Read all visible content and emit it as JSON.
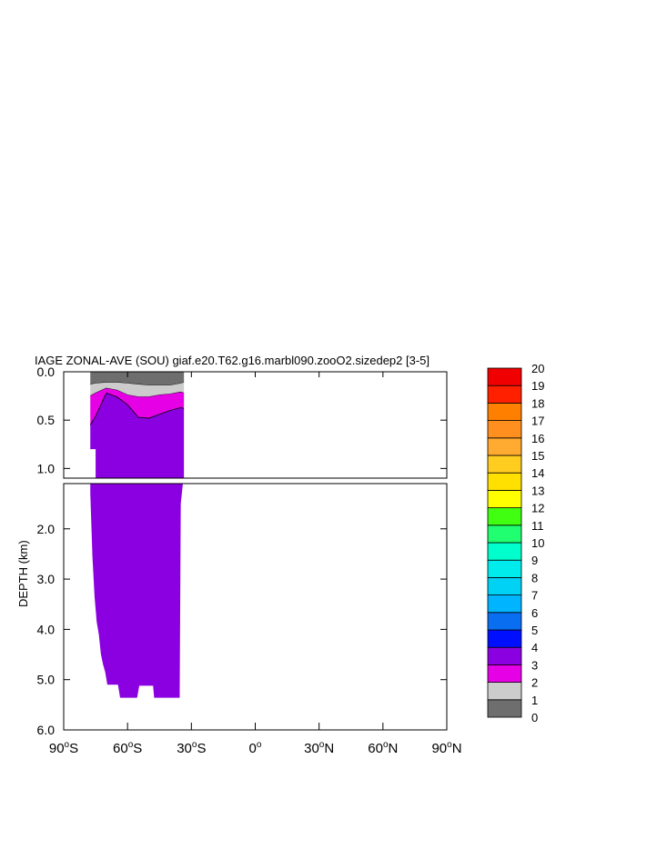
{
  "chart_data": {
    "type": "contour",
    "title": "IAGE ZONAL-AVE (SOU) giaf.e20.T62.g16.marbl090.zooO2.sizedep2 [3-5]",
    "ylabel": "DEPTH (km)",
    "xlim": [
      -90,
      90
    ],
    "upper_panel": {
      "ylim": [
        0.0,
        1.1
      ],
      "yticks": [
        0.0,
        0.5,
        1.0
      ],
      "ytick_labels": [
        "0.0",
        "0.5",
        "1.0"
      ]
    },
    "lower_panel": {
      "ylim": [
        1.1,
        6.0
      ],
      "yticks": [
        2.0,
        3.0,
        4.0,
        5.0,
        6.0
      ],
      "ytick_labels": [
        "2.0",
        "3.0",
        "4.0",
        "5.0",
        "6.0"
      ]
    },
    "xticks": [
      -90,
      -60,
      -30,
      0,
      30,
      60,
      90
    ],
    "xtick_labels": [
      "90°S",
      "60°S",
      "30°S",
      "0°",
      "30°N",
      "60°N",
      "90°N"
    ],
    "colorbar": {
      "levels": [
        "0",
        "1",
        "2",
        "3",
        "4",
        "5",
        "6",
        "7",
        "8",
        "9",
        "10",
        "11",
        "12",
        "13",
        "14",
        "15",
        "16",
        "17",
        "18",
        "19",
        "20"
      ],
      "colors": [
        "#6e6e6e",
        "#cccccc",
        "#e600e6",
        "#8b00e0",
        "#0010ff",
        "#0a6ef0",
        "#00b4ff",
        "#00d2f5",
        "#00ecec",
        "#00ffcc",
        "#20ff70",
        "#40ff10",
        "#ffff00",
        "#ffe000",
        "#ffcc20",
        "#ffaa30",
        "#ff9020",
        "#ff8000",
        "#ff2000",
        "#f00000",
        "#cc0000"
      ]
    },
    "bands": [
      {
        "level": "0-1",
        "color": "#6e6e6e",
        "lat": [
          -77.5,
          -75,
          -70,
          -65,
          -60,
          -55,
          -50,
          -45,
          -40,
          -35,
          -33.5
        ],
        "top": [
          0.0,
          0.0,
          0.0,
          0.0,
          0.0,
          0.0,
          0.0,
          0.0,
          0.0,
          0.0,
          0.0
        ],
        "bottom": [
          0.13,
          0.12,
          0.11,
          0.11,
          0.12,
          0.13,
          0.14,
          0.14,
          0.14,
          0.12,
          0.11
        ]
      },
      {
        "level": "1-2",
        "color": "#cccccc",
        "lat": [
          -77.5,
          -75,
          -70,
          -65,
          -60,
          -55,
          -50,
          -45,
          -40,
          -35,
          -33.5
        ],
        "top": [
          0.13,
          0.12,
          0.11,
          0.11,
          0.12,
          0.13,
          0.14,
          0.14,
          0.14,
          0.12,
          0.11
        ],
        "bottom": [
          0.25,
          0.22,
          0.17,
          0.19,
          0.24,
          0.26,
          0.26,
          0.24,
          0.23,
          0.21,
          0.22
        ]
      },
      {
        "level": "2-3",
        "color": "#e600e6",
        "lat": [
          -77.5,
          -75,
          -70,
          -65,
          -60,
          -55,
          -50,
          -45,
          -40,
          -35,
          -33.5
        ],
        "top": [
          0.25,
          0.22,
          0.17,
          0.19,
          0.24,
          0.26,
          0.26,
          0.24,
          0.23,
          0.21,
          0.22
        ],
        "bottom": [
          0.55,
          0.46,
          0.22,
          0.26,
          0.34,
          0.47,
          0.48,
          0.44,
          0.4,
          0.37,
          0.38
        ]
      }
    ],
    "ocean_floor": {
      "lat": [
        -77.5,
        -76.5,
        -75.5,
        -74.5,
        -73.5,
        -72.5,
        -71.5,
        -70.5,
        -69.5,
        -68.5,
        -67.5,
        -66.5,
        -64.5,
        -63.5,
        -59.5,
        -58.5,
        -55.5,
        -54.5,
        -48.5,
        -48.0,
        -47.5,
        -36.0,
        -35.5,
        -35.0,
        -34.0,
        -33.5
      ],
      "depth": [
        1.3,
        2.55,
        3.35,
        3.85,
        4.1,
        4.5,
        4.7,
        4.85,
        5.1,
        5.1,
        5.1,
        5.1,
        5.1,
        5.36,
        5.36,
        5.36,
        5.36,
        5.12,
        5.12,
        5.12,
        5.36,
        5.36,
        5.36,
        1.5,
        0.5,
        0.5
      ]
    }
  }
}
